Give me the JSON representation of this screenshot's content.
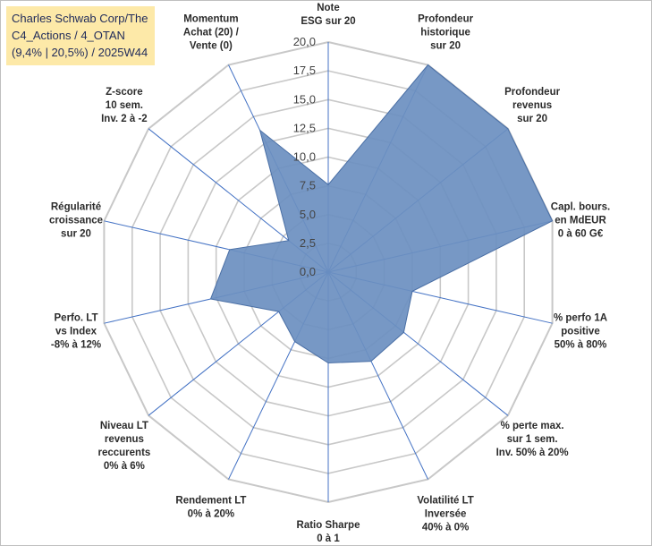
{
  "title_box": {
    "line1": "Charles Schwab Corp/The",
    "line2": "C4_Actions / 4_OTAN",
    "line3": "(9,4% | 20,5%) / 2025W44",
    "background": "#fde9a8"
  },
  "chart_data": {
    "type": "radar",
    "r_range": [
      0,
      20
    ],
    "r_step": 2.5,
    "tick_labels": [
      "0,0",
      "2,5",
      "5,0",
      "7,5",
      "10,0",
      "12,5",
      "15,0",
      "17,5",
      "20,0"
    ],
    "axes": [
      {
        "label": [
          "Note",
          "ESG sur 20"
        ],
        "value": 7.6
      },
      {
        "label": [
          "Profondeur",
          "historique",
          "sur 20"
        ],
        "value": 20.0
      },
      {
        "label": [
          "Profondeur",
          "revenus",
          "sur 20"
        ],
        "value": 20.0
      },
      {
        "label": [
          "Capl. bours.",
          "en MdEUR",
          "0 à 60 G€"
        ],
        "value": 20.0
      },
      {
        "label": [
          "% perfo 1A",
          "positive",
          "50% à 80%"
        ],
        "value": 7.5
      },
      {
        "label": [
          "% perte max.",
          "sur 1 sem.",
          "Inv. 50% à 20%"
        ],
        "value": 8.4
      },
      {
        "label": [
          "Volatilité LT",
          "Inversée",
          "40% à 0%"
        ],
        "value": 8.6
      },
      {
        "label": [
          "Ratio Sharpe",
          "0 à 1"
        ],
        "value": 7.9
      },
      {
        "label": [
          "Rendement LT",
          "0% à 20%"
        ],
        "value": 6.7
      },
      {
        "label": [
          "Niveau LT",
          "revenus",
          "reccurents",
          "0% à 6%"
        ],
        "value": 5.5
      },
      {
        "label": [
          "Perfo. LT",
          "vs Index",
          "-8% à 12%"
        ],
        "value": 10.5
      },
      {
        "label": [
          "Régularité",
          "croissance",
          "sur 20"
        ],
        "value": 8.8
      },
      {
        "label": [
          "Z-score",
          "10 sem.",
          "Inv. 2 à -2"
        ],
        "value": 4.4
      },
      {
        "label": [
          "Momentum",
          "Achat (20) /",
          "Vente (0)"
        ],
        "value": 13.7
      }
    ],
    "series": [
      {
        "values": [
          7.6,
          20.0,
          20.0,
          20.0,
          7.5,
          8.4,
          8.6,
          7.9,
          6.7,
          5.5,
          10.5,
          8.8,
          4.4,
          13.7
        ]
      }
    ],
    "colors": {
      "fill": "#6b8fc0",
      "stroke": "#4a6fa5",
      "grid": "#c8c8c8",
      "spoke": "#4472c4"
    },
    "grid": true,
    "legend": "none"
  }
}
